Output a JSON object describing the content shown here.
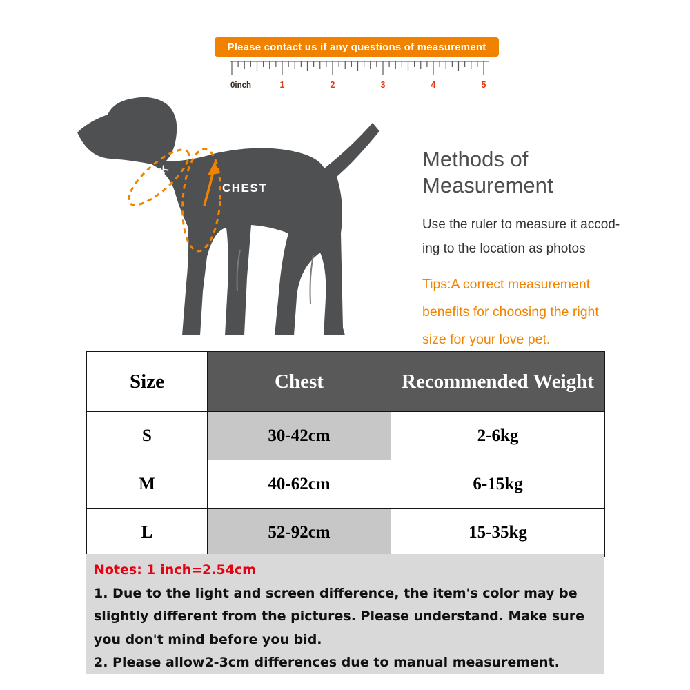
{
  "banner": {
    "text": "Please contact us if any questions of measurement"
  },
  "ruler": {
    "zero_label": "0inch",
    "marks": [
      "1",
      "2",
      "3",
      "4",
      "5"
    ]
  },
  "diagram": {
    "neck_label": "NECK",
    "chest_label": "CHEST"
  },
  "methods": {
    "title_lines": [
      "Methods of",
      "Measurement"
    ],
    "body_lines": [
      "Use the ruler to measure it accod-",
      "ing to the location as photos"
    ],
    "tips_lines": [
      "Tips:A correct measurement",
      "benefits for choosing the right",
      "size for your love pet."
    ]
  },
  "size_table": {
    "headers": [
      "Size",
      "Chest",
      "Recommended Weight"
    ],
    "rows": [
      [
        "S",
        "30-42cm",
        "2-6kg"
      ],
      [
        "M",
        "40-62cm",
        "6-15kg"
      ],
      [
        "L",
        "52-92cm",
        "15-35kg"
      ]
    ]
  },
  "notes": {
    "heading": "Notes: 1 inch=2.54cm",
    "items": [
      "1. Due to the light and screen difference, the item's color may be slightly different from the pictures. Please understand. Make sure you don't mind before you bid.",
      "2. Please allow2-3cm differences due to manual measurement."
    ]
  },
  "colors": {
    "accent_orange": "#f08200",
    "tip_orange": "#f08300",
    "note_red": "#e60012",
    "table_header_gray": "#595959",
    "row_shade_gray": "#c7c7c7",
    "notes_bg_gray": "#d9d9d9",
    "dog_gray": "#4f5052",
    "ruler_number_red": "#e8380d"
  }
}
